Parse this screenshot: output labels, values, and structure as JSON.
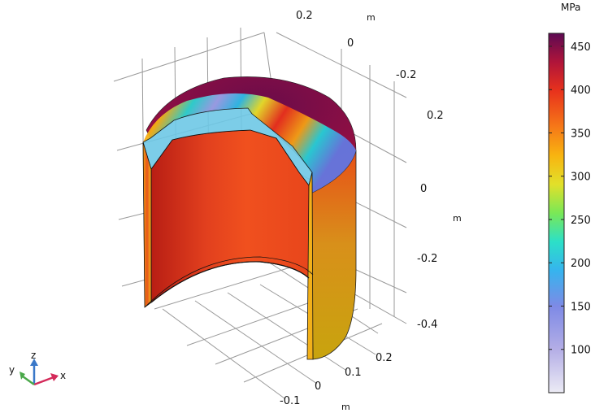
{
  "chart_data": {
    "type": "3d-surface",
    "description_unit": "MPa",
    "colorbar": {
      "unit": "MPa",
      "range": [
        50,
        465
      ],
      "ticks": [
        100,
        150,
        200,
        250,
        300,
        350,
        400,
        450
      ]
    },
    "axes": {
      "z": {
        "label": "m",
        "ticks": [
          "0.2",
          "0",
          "-0.2",
          "-0.4"
        ]
      },
      "y": {
        "label": "m",
        "ticks": [
          "0.2",
          "0",
          "-0.2"
        ]
      },
      "x": {
        "label": "m",
        "ticks": [
          "0.2",
          "0.1",
          "0",
          "-0.1"
        ]
      }
    },
    "triad": {
      "x": "x",
      "y": "y",
      "z": "z"
    },
    "grid": true,
    "colormap": "rainbow-spectrum"
  }
}
